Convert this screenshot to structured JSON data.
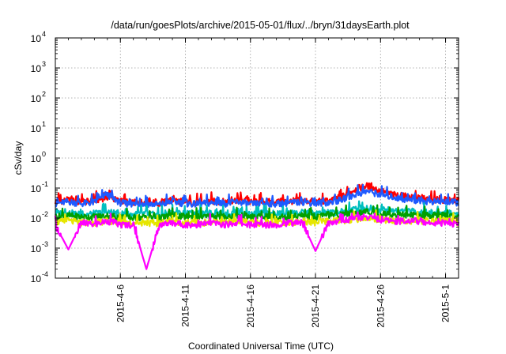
{
  "chart_data": {
    "type": "line",
    "title": "/data/run/goesPlots/archive/2015-05-01/flux/../bryn/31daysEarth.plot",
    "xlabel": "Coordinated Universal Time (UTC)",
    "ylabel": "cSv/day",
    "y_scale": "log",
    "ylim": [
      0.0001,
      10000
    ],
    "xlim": [
      "2015-04-01",
      "2015-05-02"
    ],
    "grid": true,
    "y_ticks": [
      {
        "base": "10",
        "exp": "4",
        "value": 10000
      },
      {
        "base": "10",
        "exp": "3",
        "value": 1000
      },
      {
        "base": "10",
        "exp": "2",
        "value": 100
      },
      {
        "base": "10",
        "exp": "1",
        "value": 10
      },
      {
        "base": "10",
        "exp": "0",
        "value": 1
      },
      {
        "base": "10",
        "exp": "-1",
        "value": 0.1
      },
      {
        "base": "10",
        "exp": "-2",
        "value": 0.01
      },
      {
        "base": "10",
        "exp": "-3",
        "value": 0.001
      },
      {
        "base": "10",
        "exp": "-4",
        "value": 0.0001
      }
    ],
    "x_ticks": [
      {
        "label": "2015-4-6",
        "date": "2015-04-06"
      },
      {
        "label": "2015-4-11",
        "date": "2015-04-11"
      },
      {
        "label": "2015-4-16",
        "date": "2015-04-16"
      },
      {
        "label": "2015-4-21",
        "date": "2015-04-21"
      },
      {
        "label": "2015-4-26",
        "date": "2015-04-26"
      },
      {
        "label": "2015-5-1",
        "date": "2015-05-01"
      }
    ],
    "x": [
      "2015-04-01",
      "2015-04-02",
      "2015-04-03",
      "2015-04-04",
      "2015-04-05",
      "2015-04-06",
      "2015-04-07",
      "2015-04-08",
      "2015-04-09",
      "2015-04-10",
      "2015-04-11",
      "2015-04-12",
      "2015-04-13",
      "2015-04-14",
      "2015-04-15",
      "2015-04-16",
      "2015-04-17",
      "2015-04-18",
      "2015-04-19",
      "2015-04-20",
      "2015-04-21",
      "2015-04-22",
      "2015-04-23",
      "2015-04-24",
      "2015-04-25",
      "2015-04-26",
      "2015-04-27",
      "2015-04-28",
      "2015-04-29",
      "2015-04-30",
      "2015-05-01",
      "2015-05-02"
    ],
    "series": [
      {
        "color": "#ff0000",
        "values": [
          0.035,
          0.04,
          0.033,
          0.038,
          0.05,
          0.036,
          0.032,
          0.035,
          0.03,
          0.04,
          0.034,
          0.033,
          0.036,
          0.035,
          0.04,
          0.033,
          0.035,
          0.034,
          0.036,
          0.038,
          0.035,
          0.037,
          0.05,
          0.09,
          0.12,
          0.08,
          0.06,
          0.05,
          0.045,
          0.04,
          0.04,
          0.038
        ]
      },
      {
        "color": "#1e5aff",
        "values": [
          0.03,
          0.035,
          0.03,
          0.033,
          0.06,
          0.032,
          0.029,
          0.03,
          0.028,
          0.035,
          0.03,
          0.029,
          0.032,
          0.03,
          0.035,
          0.029,
          0.031,
          0.03,
          0.032,
          0.034,
          0.031,
          0.033,
          0.04,
          0.06,
          0.08,
          0.06,
          0.05,
          0.04,
          0.038,
          0.035,
          0.035,
          0.032
        ]
      },
      {
        "color": "#00bfbf",
        "values": [
          0.014,
          0.015,
          0.013,
          0.014,
          0.016,
          0.014,
          0.013,
          0.014,
          0.012,
          0.015,
          0.014,
          0.013,
          0.014,
          0.014,
          0.015,
          0.013,
          0.014,
          0.014,
          0.014,
          0.015,
          0.014,
          0.015,
          0.016,
          0.02,
          0.022,
          0.019,
          0.018,
          0.017,
          0.016,
          0.015,
          0.015,
          0.014
        ]
      },
      {
        "color": "#00a000",
        "values": [
          0.011,
          0.012,
          0.011,
          0.011,
          0.012,
          0.011,
          0.01,
          0.011,
          0.01,
          0.012,
          0.011,
          0.011,
          0.011,
          0.011,
          0.012,
          0.011,
          0.011,
          0.011,
          0.011,
          0.012,
          0.011,
          0.012,
          0.013,
          0.015,
          0.016,
          0.014,
          0.013,
          0.013,
          0.012,
          0.012,
          0.012,
          0.011
        ]
      },
      {
        "color": "#e6e600",
        "values": [
          0.007,
          0.008,
          0.007,
          0.007,
          0.008,
          0.007,
          0.007,
          0.007,
          0.0065,
          0.008,
          0.007,
          0.007,
          0.007,
          0.007,
          0.008,
          0.007,
          0.007,
          0.007,
          0.007,
          0.008,
          0.007,
          0.008,
          0.008,
          0.009,
          0.01,
          0.009,
          0.008,
          0.008,
          0.008,
          0.008,
          0.008,
          0.007
        ]
      },
      {
        "color": "#ff00ff",
        "values": [
          0.006,
          0.0009,
          0.007,
          0.006,
          0.008,
          0.006,
          0.006,
          0.0002,
          0.006,
          0.007,
          0.006,
          0.006,
          0.007,
          0.006,
          0.007,
          0.006,
          0.006,
          0.006,
          0.007,
          0.007,
          0.0008,
          0.007,
          0.008,
          0.01,
          0.011,
          0.009,
          0.008,
          0.008,
          0.008,
          0.007,
          0.007,
          0.006
        ]
      }
    ]
  }
}
